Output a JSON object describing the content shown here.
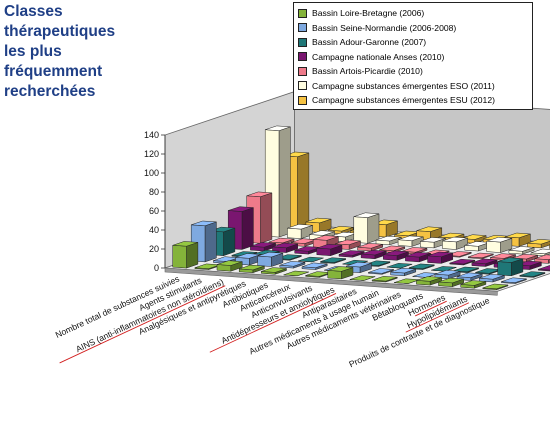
{
  "title_lines": [
    "Classes",
    "thérapeutiques",
    "les plus",
    "fréquemment",
    "recherchées"
  ],
  "chart_data": {
    "type": "bar",
    "title": "Classes thérapeutiques les plus fréquemment recherchées",
    "categories": [
      "Nombre total de substances suivies",
      "Agents stimulants",
      "AINS (anti-inflammatoires non stéroïdiens)",
      "Analgésiques et antipyrétiques",
      "Antibiotiques",
      "Anticancéreux",
      "Anticonvulsivants",
      "Antidépresseurs et anxiolytiques",
      "Antiparasitaires",
      "Autres médicaments à usage humain",
      "Autres médicaments vétérinaires",
      "Bêtabloquants",
      "Hormones",
      "Hypolipidémiants",
      "Produits de contraste et de diagnostique"
    ],
    "underlined_categories": [
      "AINS (anti-inflammatoires non stéroïdiens)",
      "Antidépresseurs et anxiolytiques",
      "Hormones",
      "Hypolipidémiants"
    ],
    "series": [
      {
        "name": "Bassin Loire-Bretagne (2006)",
        "color": "#84b33a",
        "values": [
          23,
          1,
          6,
          3,
          2,
          0,
          1,
          8,
          0,
          1,
          0,
          4,
          4,
          3,
          1
        ]
      },
      {
        "name": "Bassin Seine-Normandie (2006-2008)",
        "color": "#7ea9e0",
        "values": [
          38,
          2,
          7,
          10,
          2,
          2,
          0,
          6,
          1,
          3,
          0,
          4,
          3,
          3,
          1
        ]
      },
      {
        "name": "Bassin Adour-Garonne (2007)",
        "color": "#1f7777",
        "values": [
          25,
          1,
          4,
          1,
          0,
          1,
          0,
          1,
          0,
          1,
          0,
          1,
          1,
          14,
          1
        ]
      },
      {
        "name": "Campagne nationale Anses (2010)",
        "color": "#7a1670",
        "values": [
          40,
          4,
          5,
          3,
          7,
          2,
          4,
          5,
          5,
          7,
          1,
          3,
          4,
          4,
          1
        ]
      },
      {
        "name": "Bassin Artois-Picardie (2010)",
        "color": "#ee7a8a",
        "values": [
          49,
          2,
          3,
          8,
          5,
          3,
          2,
          2,
          1,
          1,
          1,
          2,
          3,
          4,
          2
        ]
      },
      {
        "name": "Campagne substances émergentes ESO (2011)",
        "color": "#fffde0",
        "values": [
          112,
          10,
          5,
          5,
          27,
          4,
          6,
          6,
          8,
          5,
          11,
          3,
          2,
          11,
          1
        ]
      },
      {
        "name": "Campagne substances émergentes ESU (2012)",
        "color": "#f5c242",
        "values": [
          78,
          10,
          3,
          4,
          13,
          3,
          9,
          4,
          4,
          5,
          9,
          4,
          4,
          12,
          1
        ]
      }
    ],
    "ylim": [
      0,
      140
    ],
    "yticks": [
      0,
      20,
      40,
      60,
      80,
      100,
      120,
      140
    ],
    "projection": "3d",
    "legend": "top-right",
    "grid": false
  }
}
